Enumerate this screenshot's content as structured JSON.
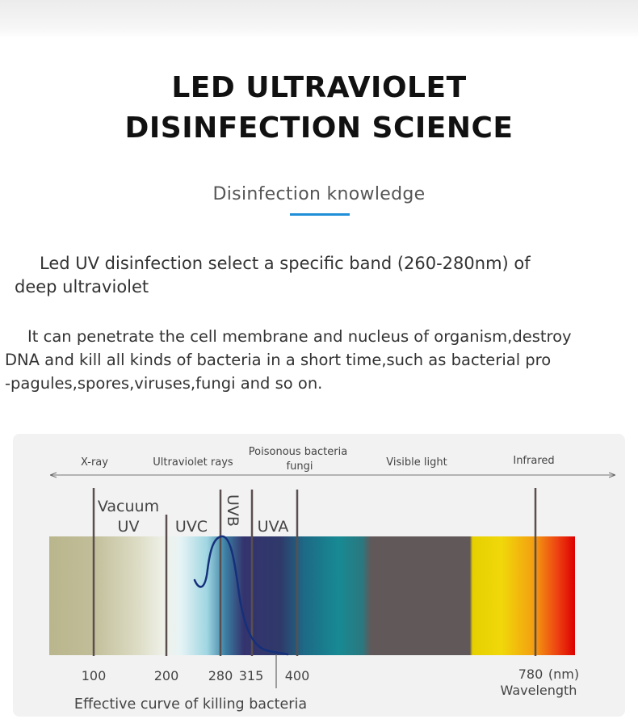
{
  "header": {
    "title_line1": "LED ULTRAVIOLET",
    "title_line2": "DISINFECTION SCIENCE",
    "subtitle": "Disinfection knowledge",
    "accent_color": "#1f8fd8"
  },
  "paragraphs": {
    "p1_line1": "Led UV disinfection select a specific band (260-280nm) of",
    "p1_line2": "deep ultraviolet",
    "p2_line1": "It can penetrate the cell membrane and nucleus of organism,destroy",
    "p2_line2": "DNA and kill all kinds of bacteria in a short time,such as bacterial pro",
    "p2_line3": "-pagules,spores,viruses,fungi and so on."
  },
  "spectrum": {
    "top_labels": {
      "xray": "X-ray",
      "uv_rays": "Ultraviolet rays",
      "poison_line1": "Poisonous bacteria",
      "poison_line2": "fungi",
      "visible": "Visible light",
      "infrared": "Infrared"
    },
    "band_labels": {
      "vacuum_line1": "Vacuum",
      "vacuum_line2": "UV",
      "uvc": "UVC",
      "uvb": "UVB",
      "uva": "UVA"
    },
    "ticks": {
      "t100": "100",
      "t200": "200",
      "t280": "280",
      "t315": "315",
      "t400": "400",
      "t780": "780",
      "unit": "(nm)",
      "axis_label": "Wavelength"
    },
    "curve_caption": "Effective curve of killing bacteria",
    "curve_color": "#15307a"
  }
}
